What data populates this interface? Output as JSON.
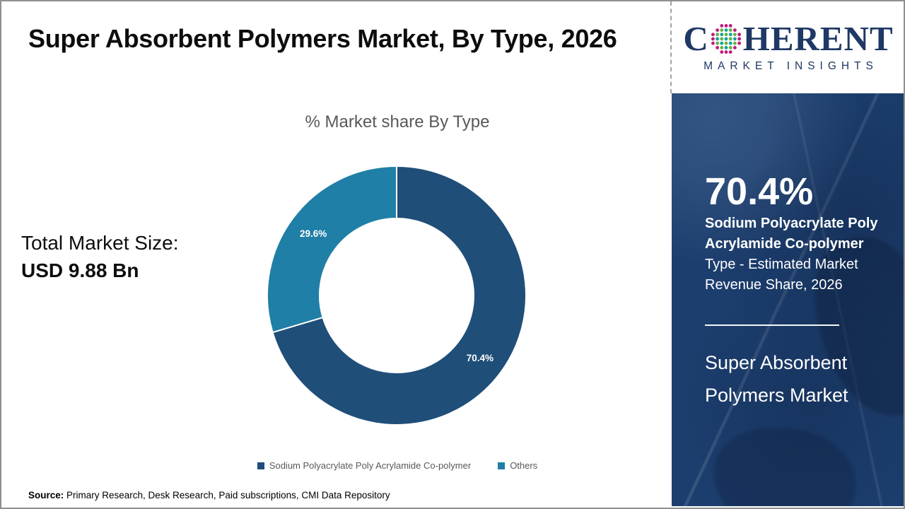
{
  "title": "Super Absorbent Polymers Market, By Type, 2026",
  "total_market": {
    "label": "Total Market Size:",
    "value": "USD 9.88 Bn"
  },
  "chart_data": {
    "type": "pie",
    "donut": true,
    "title": "% Market share By Type",
    "categories": [
      "Sodium Polyacrylate Poly Acrylamide Co-polymer",
      "Others"
    ],
    "values": [
      70.4,
      29.6
    ],
    "slice_labels": [
      "70.4%",
      "29.6%"
    ],
    "colors": [
      "#1f4e79",
      "#1f7fa6"
    ],
    "start_angle_deg": 0,
    "direction": "clockwise-from-top",
    "legend_position": "bottom"
  },
  "sidebar": {
    "stat_value": "70.4%",
    "stat_label_bold": "Sodium Polyacrylate Poly Acrylamide Co-polymer",
    "stat_label_rest": "Type - Estimated Market Revenue Share, 2026",
    "market_name": "Super Absorbent Polymers Market",
    "background_color": "#1c3e6e"
  },
  "logo": {
    "prefix": "C",
    "suffix": "HERENT",
    "tagline": "MARKET INSIGHTS",
    "brand_color": "#1f3864",
    "dot_colors": [
      "#c2187c",
      "#12a39a",
      "#63b345"
    ]
  },
  "source": {
    "label": "Source:",
    "text": " Primary Research, Desk Research, Paid subscriptions, CMI Data Repository"
  }
}
